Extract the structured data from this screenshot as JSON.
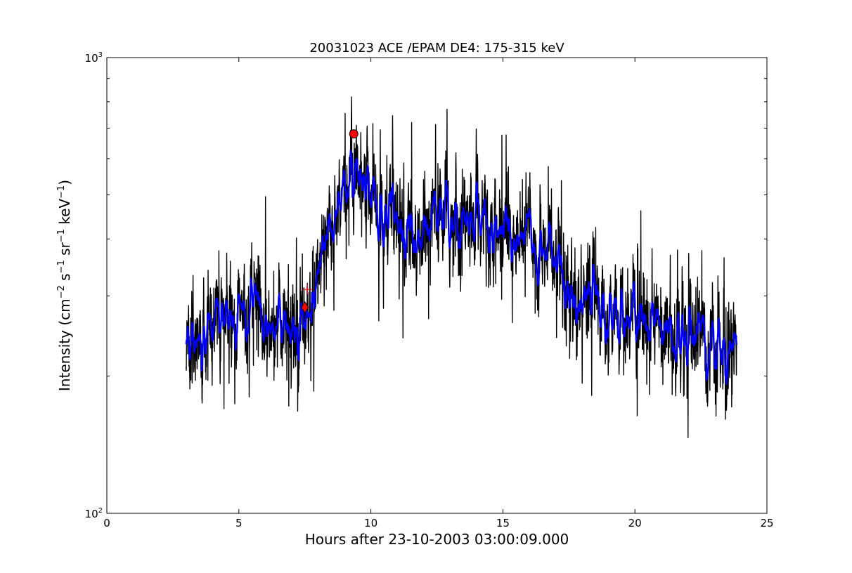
{
  "chart_data": {
    "type": "line",
    "title": "20031023 ACE /EPAM DE4: 175-315 keV",
    "xlabel": "Hours after 23-10-2003 03:00:09.000",
    "ylabel": {
      "prefix": "Intensity (cm",
      "sup1": "−2",
      "s": " s",
      "sup2": "−1",
      "sr": " sr",
      "sup3": "−1",
      "kev": " keV",
      "sup4": "−1",
      "suffix": ")"
    },
    "xlim": [
      0,
      25
    ],
    "ylim": [
      100,
      1000
    ],
    "yscale": "log",
    "xticks": [
      0,
      5,
      10,
      15,
      20,
      25
    ],
    "xtick_labels": [
      "0",
      "5",
      "10",
      "15",
      "20",
      "25"
    ],
    "yticks": [
      100,
      1000
    ],
    "ytick_labels": [
      {
        "base": "10",
        "exp": "2"
      },
      {
        "base": "10",
        "exp": "3"
      }
    ],
    "grid": false,
    "series": [
      {
        "color": "#000000",
        "style": "raw",
        "x_range": [
          3.0,
          23.85
        ],
        "envelope": [
          [
            3.0,
            222
          ],
          [
            3.5,
            240
          ],
          [
            4.0,
            270
          ],
          [
            4.5,
            280
          ],
          [
            5.0,
            290
          ],
          [
            5.5,
            275
          ],
          [
            6.0,
            262
          ],
          [
            6.5,
            262
          ],
          [
            7.0,
            255
          ],
          [
            7.3,
            245
          ],
          [
            7.6,
            270
          ],
          [
            8.0,
            345
          ],
          [
            8.5,
            420
          ],
          [
            9.0,
            510
          ],
          [
            9.3,
            555
          ],
          [
            9.7,
            550
          ],
          [
            10.1,
            520
          ],
          [
            10.3,
            455
          ],
          [
            11.0,
            435
          ],
          [
            11.5,
            415
          ],
          [
            12.0,
            440
          ],
          [
            12.5,
            445
          ],
          [
            13.0,
            440
          ],
          [
            14.0,
            430
          ],
          [
            15.0,
            410
          ],
          [
            16.0,
            395
          ],
          [
            17.0,
            375
          ],
          [
            17.3,
            310
          ],
          [
            18.0,
            295
          ],
          [
            19.0,
            275
          ],
          [
            20.0,
            262
          ],
          [
            21.0,
            255
          ],
          [
            22.0,
            245
          ],
          [
            23.0,
            235
          ],
          [
            23.85,
            225
          ]
        ]
      },
      {
        "color": "#0000ff",
        "style": "smoothed",
        "x_range": [
          3.0,
          23.85
        ]
      }
    ],
    "markers": [
      {
        "shape": "circle",
        "color": "#ff0000",
        "x": 9.35,
        "y": 680
      },
      {
        "shape": "diamond",
        "color": "#ff0000",
        "x": 7.5,
        "y": 283
      },
      {
        "shape": "plus",
        "color": "#ff0000",
        "x": 7.6,
        "y": 310
      }
    ]
  }
}
